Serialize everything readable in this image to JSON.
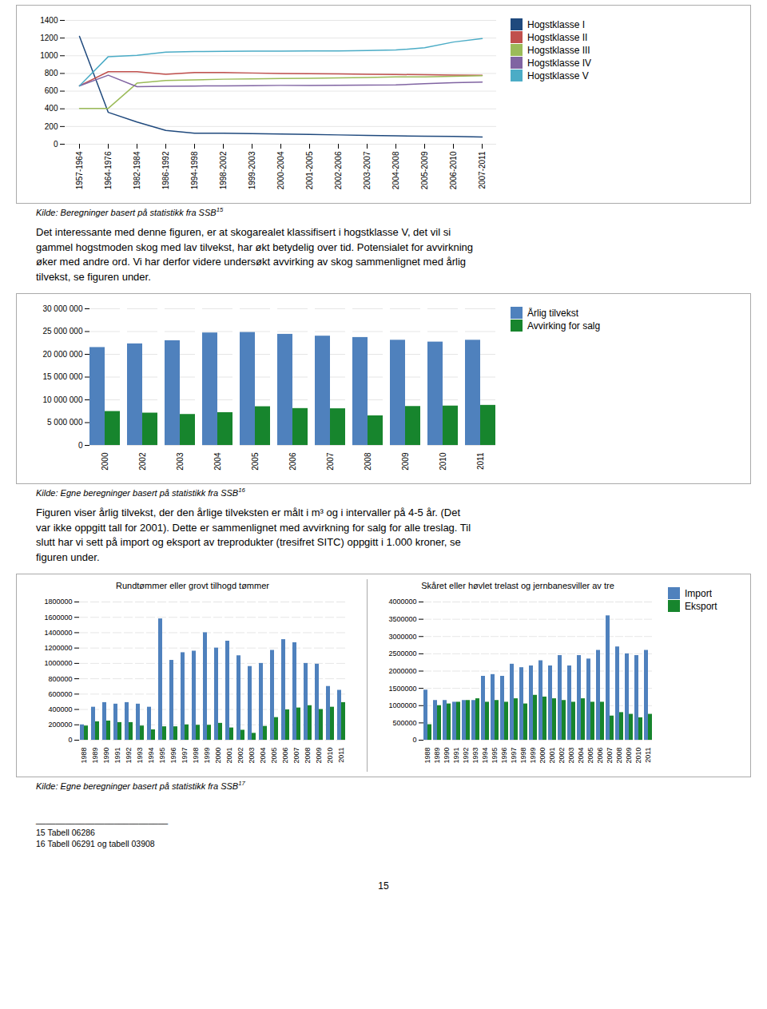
{
  "chart_data": [
    {
      "type": "line",
      "categories": [
        "1957-1964",
        "1964-1976",
        "1982-1984",
        "1986-1992",
        "1994-1998",
        "1998-2002",
        "1999-2003",
        "2000-2004",
        "2001-2005",
        "2002-2006",
        "2003-2007",
        "2004-2008",
        "2005-2009",
        "2006-2010",
        "2007-2011"
      ],
      "series": [
        {
          "name": "Hogstklasse I",
          "color": "#1f497d",
          "values": [
            1220,
            360,
            250,
            155,
            125,
            125,
            120,
            115,
            110,
            105,
            100,
            95,
            90,
            87,
            82
          ]
        },
        {
          "name": "Hogstklasse II",
          "color": "#c0504d",
          "values": [
            660,
            820,
            820,
            790,
            810,
            810,
            805,
            800,
            798,
            795,
            790,
            788,
            785,
            782,
            778
          ]
        },
        {
          "name": "Hogstklasse III",
          "color": "#9bbb59",
          "values": [
            405,
            405,
            690,
            720,
            728,
            735,
            738,
            742,
            745,
            750,
            755,
            760,
            762,
            768,
            775
          ]
        },
        {
          "name": "Hogstklasse IV",
          "color": "#8064a2",
          "values": [
            660,
            780,
            650,
            655,
            658,
            660,
            662,
            665,
            665,
            666,
            668,
            670,
            685,
            695,
            703
          ]
        },
        {
          "name": "Hogstklasse V",
          "color": "#4bacc6",
          "values": [
            660,
            990,
            1005,
            1040,
            1048,
            1050,
            1052,
            1053,
            1055,
            1055,
            1058,
            1065,
            1090,
            1155,
            1195
          ]
        }
      ],
      "ylim": [
        0,
        1400
      ],
      "yticks": [
        0,
        200,
        400,
        600,
        800,
        1000,
        1200,
        1400
      ],
      "grid": true,
      "legend": "right"
    },
    {
      "type": "bar",
      "categories": [
        "2000",
        "2002",
        "2003",
        "2004",
        "2005",
        "2006",
        "2007",
        "2008",
        "2009",
        "2010",
        "2011"
      ],
      "series": [
        {
          "name": "Årlig tilvekst",
          "color": "#4f81bd",
          "values": [
            21500000,
            22300000,
            23000000,
            24700000,
            24800000,
            24400000,
            24000000,
            23700000,
            23100000,
            22700000,
            23100000
          ]
        },
        {
          "name": "Avvirking for salg",
          "color": "#17852d",
          "values": [
            7450000,
            7100000,
            6800000,
            7200000,
            8500000,
            8100000,
            8050000,
            6500000,
            8550000,
            8650000,
            8800000
          ]
        }
      ],
      "ylim": [
        0,
        30000000
      ],
      "yticks": [
        0,
        {
          "value": 5000000,
          "label": "5 000 000"
        },
        {
          "value": 10000000,
          "label": "10 000 000"
        },
        {
          "value": 15000000,
          "label": "15 000 000"
        },
        {
          "value": 20000000,
          "label": "20 000 000"
        },
        {
          "value": 25000000,
          "label": "25 000 000"
        },
        {
          "value": 30000000,
          "label": "30 000 000"
        }
      ],
      "grid": true,
      "legend": "right"
    },
    {
      "type": "bar",
      "title": "Rundtømmer eller grovt tilhogd tømmer",
      "categories": [
        "1988",
        "1989",
        "1990",
        "1991",
        "1992",
        "1993",
        "1994",
        "1995",
        "1996",
        "1997",
        "1998",
        "1999",
        "2000",
        "2001",
        "2002",
        "2003",
        "2004",
        "2005",
        "2006",
        "2007",
        "2008",
        "2009",
        "2010",
        "2011"
      ],
      "series": [
        {
          "name": "Import",
          "color": "#4f81bd",
          "values": [
            200000,
            430000,
            490000,
            470000,
            490000,
            470000,
            430000,
            1580000,
            1040000,
            1140000,
            1160000,
            1400000,
            1200000,
            1290000,
            1100000,
            960000,
            1000000,
            1170000,
            1310000,
            1270000,
            1000000,
            990000,
            700000,
            650000
          ]
        },
        {
          "name": "Eksport",
          "color": "#17852d",
          "values": [
            185000,
            240000,
            250000,
            230000,
            230000,
            185000,
            135000,
            175000,
            175000,
            200000,
            195000,
            195000,
            220000,
            160000,
            130000,
            90000,
            180000,
            295000,
            395000,
            420000,
            450000,
            400000,
            430000,
            490000
          ]
        }
      ],
      "ylim": [
        0,
        1800000
      ],
      "yticks": [
        0,
        200000,
        400000,
        600000,
        800000,
        1000000,
        1200000,
        1400000,
        1600000,
        1800000
      ],
      "grid": true,
      "legend": false
    },
    {
      "type": "bar",
      "title": "Skåret eller høvlet trelast og jernbanesviller av tre",
      "categories": [
        "1988",
        "1989",
        "1990",
        "1991",
        "1992",
        "1993",
        "1994",
        "1995",
        "1996",
        "1997",
        "1998",
        "1999",
        "2000",
        "2001",
        "2002",
        "2003",
        "2004",
        "2005",
        "2006",
        "2007",
        "2008",
        "2009",
        "2010",
        "2011"
      ],
      "series": [
        {
          "name": "Import",
          "color": "#4f81bd",
          "values": [
            1450000,
            1150000,
            1150000,
            1100000,
            1150000,
            1150000,
            1850000,
            1900000,
            1850000,
            2200000,
            2100000,
            2150000,
            2300000,
            2150000,
            2450000,
            2150000,
            2450000,
            2350000,
            2600000,
            3600000,
            2700000,
            2500000,
            2450000,
            2600000
          ]
        },
        {
          "name": "Eksport",
          "color": "#17852d",
          "values": [
            450000,
            1000000,
            1050000,
            1100000,
            1150000,
            1200000,
            1100000,
            1150000,
            1100000,
            1200000,
            1050000,
            1300000,
            1250000,
            1200000,
            1150000,
            1100000,
            1200000,
            1100000,
            1100000,
            700000,
            800000,
            750000,
            650000,
            750000
          ]
        }
      ],
      "ylim": [
        0,
        4000000
      ],
      "yticks": [
        0,
        500000,
        1000000,
        1500000,
        2000000,
        2500000,
        3000000,
        3500000,
        4000000
      ],
      "grid": true,
      "legend": "right"
    }
  ],
  "sources": [
    {
      "text": "Kilde: Beregninger basert på statistikk fra SSB",
      "note": "15"
    },
    {
      "text": "Kilde: Egne beregninger basert på statistikk fra SSB",
      "note": "16"
    },
    {
      "text": "Kilde: Egne beregninger basert på statistikk fra SSB",
      "note": "17"
    }
  ],
  "paragraphs": [
    "Det interessante med denne figuren, er at skogarealet klassifisert i hogstklasse V, det vil si\ngammel hogstmoden skog med lav tilvekst, har økt betydelig over tid. Potensialet for avvirkning\nøker med andre ord. Vi har derfor videre undersøkt avvirking av skog sammenlignet med årlig\ntilvekst, se figuren under.",
    "Figuren viser årlig tilvekst, der den årlige tilveksten er målt i m³ og i intervaller på 4-5 år. (Det\nvar ikke oppgitt tall for 2001). Dette er sammenlignet med avvirkning for salg for alle treslag. Til\nslutt har vi sett på import og eksport av treprodukter (tresifret SITC) oppgitt i 1.000 kroner, se\nfiguren under."
  ],
  "footnotes_line": "___________________________",
  "footnotes": [
    "15 Tabell 06286",
    "16 Tabell 06291 og tabell 03908"
  ],
  "page_number": "15"
}
